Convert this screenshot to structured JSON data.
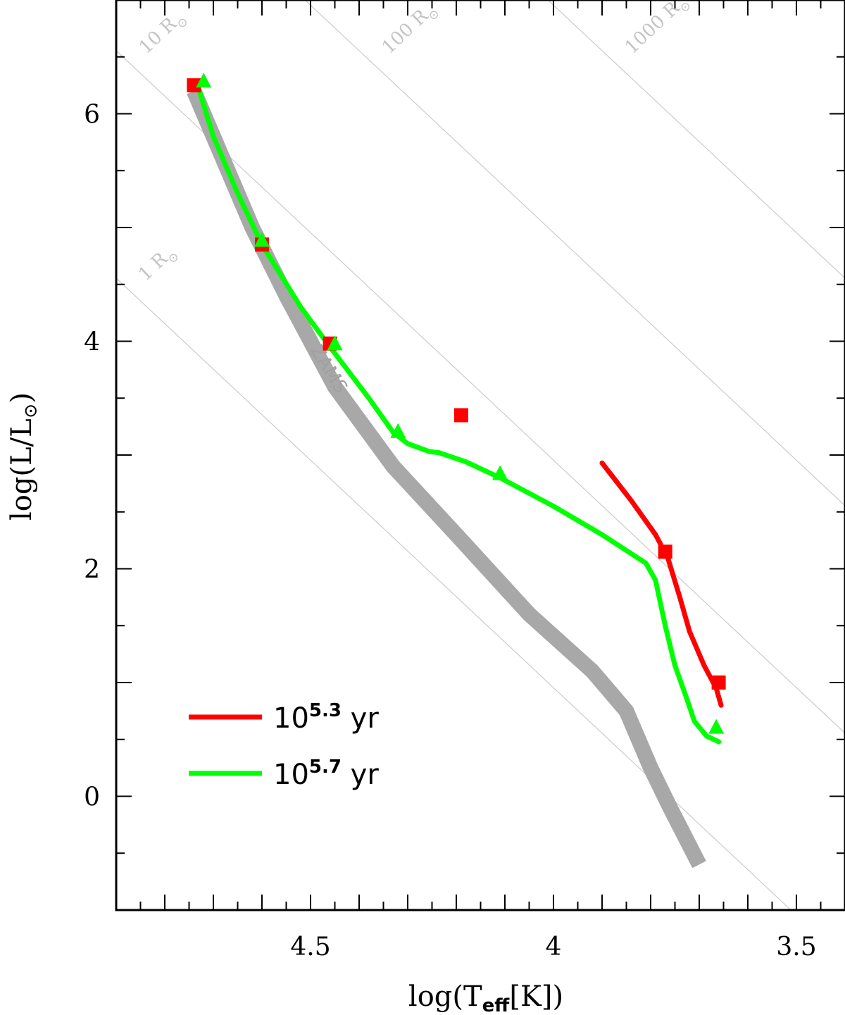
{
  "chart_data": {
    "type": "line",
    "xlabel_main": "log(T",
    "xlabel_sub": "eff",
    "xlabel_end": "[K])",
    "ylabel_main": "log(L/L",
    "ylabel_sun": "⊙",
    "ylabel_end": ")",
    "xlim": [
      4.9,
      3.4
    ],
    "ylim": [
      -1.0,
      7.0
    ],
    "x_ticks": [
      {
        "value": 4.5,
        "label": "4.5"
      },
      {
        "value": 4.0,
        "label": "4"
      },
      {
        "value": 3.5,
        "label": "3.5"
      }
    ],
    "y_ticks": [
      {
        "value": 0,
        "label": "0"
      },
      {
        "value": 2,
        "label": "2"
      },
      {
        "value": 4,
        "label": "4"
      },
      {
        "value": 6,
        "label": "6"
      }
    ],
    "radius_lines": [
      {
        "value": 1,
        "label_main": "1 R",
        "label_sun": "⊙"
      },
      {
        "value": 10,
        "label_main": "10 R",
        "label_sun": "⊙"
      },
      {
        "value": 100,
        "label_main": "100 R",
        "label_sun": "⊙"
      },
      {
        "value": 1000,
        "label_main": "1000 R",
        "label_sun": "⊙"
      }
    ],
    "zams": {
      "label": "ZAMS",
      "color": "#a8a8a8",
      "points": [
        [
          4.74,
          6.2
        ],
        [
          4.7,
          5.8
        ],
        [
          4.62,
          5.0
        ],
        [
          4.55,
          4.4
        ],
        [
          4.45,
          3.6
        ],
        [
          4.33,
          2.9
        ],
        [
          4.2,
          2.3
        ],
        [
          4.05,
          1.6
        ],
        [
          3.92,
          1.1
        ],
        [
          3.85,
          0.75
        ],
        [
          3.8,
          0.25
        ],
        [
          3.76,
          -0.1
        ],
        [
          3.7,
          -0.6
        ]
      ]
    },
    "series": [
      {
        "name_base": "10",
        "name_exp": "5.3",
        "name_unit": " yr",
        "color": "#ff0000",
        "points": [
          [
            3.9,
            2.93
          ],
          [
            3.84,
            2.6
          ],
          [
            3.79,
            2.3
          ],
          [
            3.765,
            2.1
          ],
          [
            3.74,
            1.75
          ],
          [
            3.72,
            1.45
          ],
          [
            3.69,
            1.15
          ],
          [
            3.665,
            0.95
          ],
          [
            3.655,
            0.8
          ]
        ],
        "markers": [
          [
            4.74,
            6.25
          ],
          [
            4.6,
            4.85
          ],
          [
            4.46,
            3.98
          ],
          [
            4.19,
            3.35
          ],
          [
            3.77,
            2.15
          ],
          [
            3.66,
            1.0
          ]
        ],
        "marker": "square"
      },
      {
        "name_base": "10",
        "name_exp": "5.7",
        "name_unit": " yr",
        "color": "#00ff00",
        "points": [
          [
            4.73,
            6.22
          ],
          [
            4.7,
            5.8
          ],
          [
            4.65,
            5.3
          ],
          [
            4.6,
            4.85
          ],
          [
            4.52,
            4.3
          ],
          [
            4.46,
            3.95
          ],
          [
            4.38,
            3.5
          ],
          [
            4.33,
            3.2
          ],
          [
            4.3,
            3.1
          ],
          [
            4.255,
            3.03
          ],
          [
            4.235,
            3.02
          ],
          [
            4.18,
            2.94
          ],
          [
            4.11,
            2.8
          ],
          [
            4.0,
            2.55
          ],
          [
            3.9,
            2.3
          ],
          [
            3.81,
            2.05
          ],
          [
            3.79,
            1.9
          ],
          [
            3.77,
            1.5
          ],
          [
            3.75,
            1.15
          ],
          [
            3.725,
            0.85
          ],
          [
            3.71,
            0.66
          ],
          [
            3.685,
            0.53
          ],
          [
            3.66,
            0.48
          ]
        ],
        "markers": [
          [
            4.72,
            6.28
          ],
          [
            4.6,
            4.88
          ],
          [
            4.45,
            3.97
          ],
          [
            4.32,
            3.2
          ],
          [
            4.11,
            2.83
          ],
          [
            3.665,
            0.6
          ]
        ],
        "marker": "triangle"
      }
    ]
  }
}
